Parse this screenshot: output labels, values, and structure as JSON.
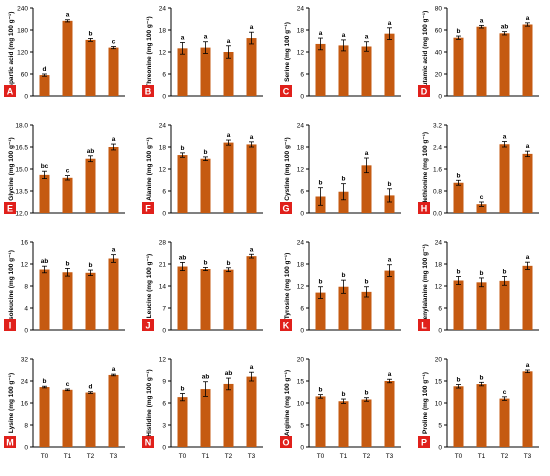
{
  "colors": {
    "bar": "#c55a11",
    "panel_label": "#e0201b",
    "panel_label_text": "#ffffff",
    "axis": "#000000"
  },
  "x_categories": [
    "T0",
    "T1",
    "T2",
    "T3"
  ],
  "chart_data": [
    {
      "type": "bar",
      "panel": "A",
      "ylabel": "Aspartic acid (mg 100 g⁻¹)",
      "ylim": [
        0,
        240
      ],
      "ticks": [
        "0",
        "60",
        "120",
        "180",
        "240"
      ],
      "values": [
        57,
        205,
        153,
        132
      ],
      "errors": [
        3,
        3,
        4,
        3
      ],
      "letters": [
        "d",
        "a",
        "b",
        "c"
      ]
    },
    {
      "type": "bar",
      "panel": "B",
      "ylabel": "Threonine (mg 100 g⁻¹)",
      "ylim": [
        0,
        24
      ],
      "ticks": [
        "0",
        "6",
        "12",
        "18",
        "24"
      ],
      "values": [
        13.0,
        13.2,
        12.0,
        15.8
      ],
      "errors": [
        1.6,
        1.6,
        1.7,
        1.6
      ],
      "letters": [
        "a",
        "a",
        "a",
        "a"
      ]
    },
    {
      "type": "bar",
      "panel": "C",
      "ylabel": "Serine (mg 100 g⁻¹)",
      "ylim": [
        0,
        24
      ],
      "ticks": [
        "0",
        "6",
        "12",
        "18",
        "24"
      ],
      "values": [
        14.2,
        13.8,
        13.5,
        17.0
      ],
      "errors": [
        1.6,
        1.5,
        1.3,
        1.6
      ],
      "letters": [
        "a",
        "a",
        "a",
        "a"
      ]
    },
    {
      "type": "bar",
      "panel": "D",
      "ylabel": "Glutamic acid (mg 100 g⁻¹)",
      "ylim": [
        0,
        80
      ],
      "ticks": [
        "0",
        "20",
        "40",
        "60",
        "80"
      ],
      "values": [
        53,
        63,
        57,
        65
      ],
      "errors": [
        1.5,
        1.2,
        1.5,
        1.5
      ],
      "letters": [
        "b",
        "a",
        "ab",
        "a"
      ]
    },
    {
      "type": "bar",
      "panel": "E",
      "ylabel": "Glycine (mg 100 g⁻¹)",
      "ylim": [
        12,
        18
      ],
      "ticks": [
        "12.0",
        "13.5",
        "15.0",
        "16.5",
        "18.0"
      ],
      "values": [
        14.6,
        14.4,
        15.7,
        16.5
      ],
      "errors": [
        0.25,
        0.15,
        0.2,
        0.2
      ],
      "letters": [
        "bc",
        "c",
        "ab",
        "a"
      ]
    },
    {
      "type": "bar",
      "panel": "F",
      "ylabel": "Alanine (mg 100 g⁻¹)",
      "ylim": [
        0,
        24
      ],
      "ticks": [
        "0",
        "6",
        "12",
        "18",
        "24"
      ],
      "values": [
        15.8,
        14.8,
        19.2,
        18.7
      ],
      "errors": [
        0.6,
        0.5,
        0.7,
        0.7
      ],
      "letters": [
        "b",
        "b",
        "a",
        "a"
      ]
    },
    {
      "type": "bar",
      "panel": "G",
      "ylabel": "Cystine (mg 100 g⁻¹)",
      "ylim": [
        0,
        24
      ],
      "ticks": [
        "0",
        "6",
        "12",
        "18",
        "24"
      ],
      "values": [
        4.5,
        5.8,
        13.0,
        4.8
      ],
      "errors": [
        2.4,
        2.2,
        2.0,
        1.8
      ],
      "letters": [
        "b",
        "b",
        "a",
        "b"
      ]
    },
    {
      "type": "bar",
      "panel": "H",
      "ylabel": "Methionine (mg 100 g⁻¹)",
      "ylim": [
        0,
        3.2
      ],
      "ticks": [
        "0.0",
        "0.8",
        "1.6",
        "2.4",
        "3.2"
      ],
      "values": [
        1.1,
        0.32,
        2.5,
        2.15
      ],
      "errors": [
        0.09,
        0.08,
        0.1,
        0.1
      ],
      "letters": [
        "b",
        "c",
        "a",
        "a"
      ]
    },
    {
      "type": "bar",
      "panel": "I",
      "ylabel": "Isoleucine (mg 100 g⁻¹)",
      "ylim": [
        0,
        16
      ],
      "ticks": [
        "0",
        "4",
        "8",
        "12",
        "16"
      ],
      "values": [
        11.0,
        10.5,
        10.4,
        13.0
      ],
      "errors": [
        0.6,
        0.7,
        0.5,
        0.7
      ],
      "letters": [
        "ab",
        "b",
        "b",
        "a"
      ]
    },
    {
      "type": "bar",
      "panel": "J",
      "ylabel": "Leucine (mg 100 g⁻¹)",
      "ylim": [
        0,
        28
      ],
      "ticks": [
        "0",
        "7",
        "14",
        "21",
        "28"
      ],
      "values": [
        20.2,
        19.4,
        19.2,
        23.5
      ],
      "errors": [
        1.3,
        0.5,
        0.6,
        0.6
      ],
      "letters": [
        "ab",
        "b",
        "b",
        "a"
      ]
    },
    {
      "type": "bar",
      "panel": "K",
      "ylabel": "Tyrosine (mg 100 g⁻¹)",
      "ylim": [
        0,
        24
      ],
      "ticks": [
        "0",
        "6",
        "12",
        "18",
        "24"
      ],
      "values": [
        10.2,
        11.8,
        10.4,
        16.2
      ],
      "errors": [
        1.6,
        1.8,
        1.4,
        1.6
      ],
      "letters": [
        "b",
        "b",
        "b",
        "a"
      ]
    },
    {
      "type": "bar",
      "panel": "L",
      "ylabel": "Phenylalanine (mg 100 g⁻¹)",
      "ylim": [
        0,
        24
      ],
      "ticks": [
        "0",
        "6",
        "12",
        "18",
        "24"
      ],
      "values": [
        13.5,
        13.0,
        13.4,
        17.5
      ],
      "errors": [
        1.1,
        1.2,
        1.2,
        1.0
      ],
      "letters": [
        "b",
        "b",
        "b",
        "a"
      ]
    },
    {
      "type": "bar",
      "panel": "M",
      "ylabel": "Lysine (mg 100 g⁻¹)",
      "ylim": [
        0,
        32
      ],
      "ticks": [
        "0",
        "8",
        "16",
        "24",
        "32"
      ],
      "values": [
        21.8,
        20.8,
        19.8,
        26.2
      ],
      "errors": [
        0.3,
        0.3,
        0.3,
        0.3
      ],
      "letters": [
        "b",
        "c",
        "d",
        "a"
      ]
    },
    {
      "type": "bar",
      "panel": "N",
      "ylabel": "Histidine (mg 100 g⁻¹)",
      "ylim": [
        0,
        12
      ],
      "ticks": [
        "0",
        "3",
        "6",
        "9",
        "12"
      ],
      "values": [
        6.8,
        7.9,
        8.6,
        9.6
      ],
      "errors": [
        0.5,
        1.0,
        0.8,
        0.6
      ],
      "letters": [
        "b",
        "ab",
        "ab",
        "a"
      ]
    },
    {
      "type": "bar",
      "panel": "O",
      "ylabel": "Arginine (mg 100 g⁻¹)",
      "ylim": [
        0,
        20
      ],
      "ticks": [
        "0",
        "5",
        "10",
        "15",
        "20"
      ],
      "values": [
        11.5,
        10.4,
        10.8,
        15.0
      ],
      "errors": [
        0.4,
        0.5,
        0.4,
        0.4
      ],
      "letters": [
        "b",
        "b",
        "b",
        "a"
      ]
    },
    {
      "type": "bar",
      "panel": "P",
      "ylabel": "Proline (mg 100 g⁻¹)",
      "ylim": [
        0,
        20
      ],
      "ticks": [
        "0",
        "5",
        "10",
        "15",
        "20"
      ],
      "values": [
        13.8,
        14.3,
        11.0,
        17.2
      ],
      "errors": [
        0.4,
        0.4,
        0.4,
        0.3
      ],
      "letters": [
        "b",
        "b",
        "c",
        "a"
      ]
    }
  ]
}
